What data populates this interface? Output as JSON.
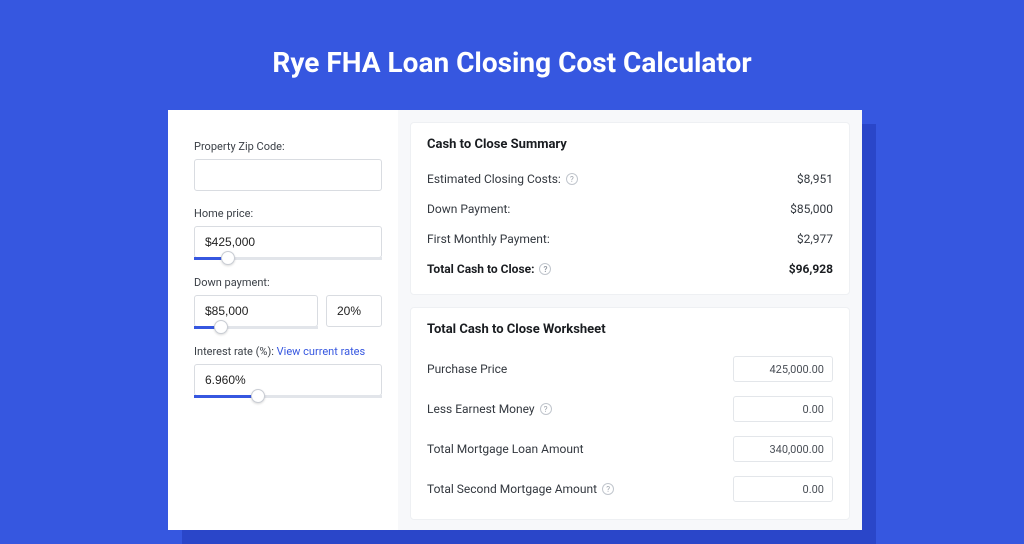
{
  "colors": {
    "page_bg": "#3657e0",
    "card_bg": "#ffffff",
    "shadow_bg": "#2a46c9",
    "right_bg": "#f7f8fa",
    "border": "#d9dce1",
    "text": "#33383f",
    "text_dark": "#1a1d21",
    "link": "#3657e0",
    "slider_fill": "#3657e0",
    "slider_track": "#e2e5ea"
  },
  "title": "Rye FHA Loan Closing Cost Calculator",
  "form": {
    "zip_label": "Property Zip Code:",
    "zip_value": "",
    "home_price_label": "Home price:",
    "home_price_value": "$425,000",
    "home_price_slider_pct": 18,
    "down_payment_label": "Down payment:",
    "down_payment_value": "$85,000",
    "down_payment_pct_value": "20%",
    "down_payment_slider_pct": 22,
    "interest_label": "Interest rate (%):",
    "interest_link": "View current rates",
    "interest_value": "6.960%",
    "interest_slider_pct": 34
  },
  "summary": {
    "title": "Cash to Close Summary",
    "rows": [
      {
        "label": "Estimated Closing Costs:",
        "help": true,
        "value": "$8,951",
        "bold": false
      },
      {
        "label": "Down Payment:",
        "help": false,
        "value": "$85,000",
        "bold": false
      },
      {
        "label": "First Monthly Payment:",
        "help": false,
        "value": "$2,977",
        "bold": false
      },
      {
        "label": "Total Cash to Close:",
        "help": true,
        "value": "$96,928",
        "bold": true
      }
    ]
  },
  "worksheet": {
    "title": "Total Cash to Close Worksheet",
    "rows": [
      {
        "label": "Purchase Price",
        "help": false,
        "value": "425,000.00"
      },
      {
        "label": "Less Earnest Money",
        "help": true,
        "value": "0.00"
      },
      {
        "label": "Total Mortgage Loan Amount",
        "help": false,
        "value": "340,000.00"
      },
      {
        "label": "Total Second Mortgage Amount",
        "help": true,
        "value": "0.00"
      }
    ]
  }
}
